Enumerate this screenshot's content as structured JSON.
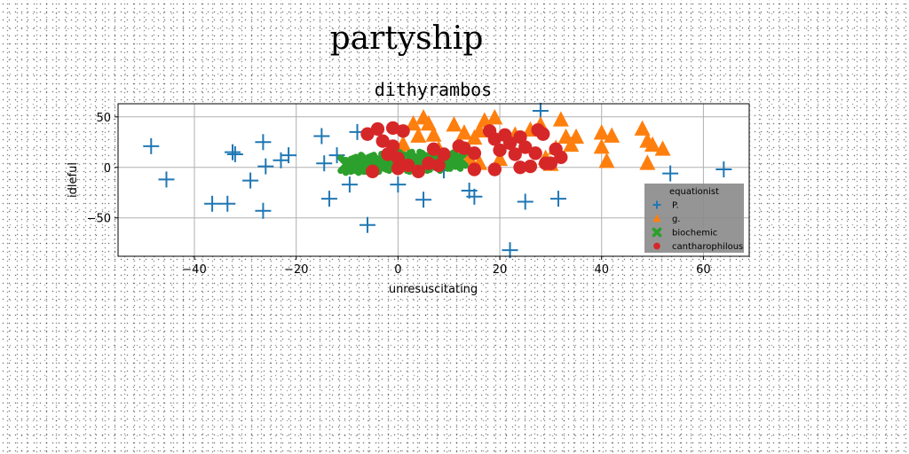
{
  "figure_title": "partyship",
  "chart_data": {
    "type": "scatter",
    "title": "dithyrambos",
    "xlabel": "unresuscitating",
    "ylabel": "idleful",
    "xlim": [
      -55,
      69
    ],
    "ylim": [
      -88,
      63
    ],
    "xticks": [
      -40,
      -20,
      0,
      20,
      40,
      60
    ],
    "yticks": [
      -50,
      0,
      50
    ],
    "xtick_labels": [
      "−40",
      "−20",
      "0",
      "20",
      "40",
      "60"
    ],
    "ytick_labels": [
      "−50",
      "0",
      "50"
    ],
    "grid": true,
    "legend": {
      "title": "equationist",
      "placement": "lower-right"
    },
    "series": [
      {
        "name": "P.",
        "marker": "plus",
        "color": "#1f77b4",
        "points": [
          [
            -48.5,
            21
          ],
          [
            -45.5,
            -12
          ],
          [
            -36.5,
            -36
          ],
          [
            -33.5,
            -36
          ],
          [
            -32.5,
            15
          ],
          [
            -32,
            13
          ],
          [
            -29,
            -13
          ],
          [
            -26.5,
            25
          ],
          [
            -26.5,
            -43
          ],
          [
            -26,
            1
          ],
          [
            -23,
            7
          ],
          [
            -21.5,
            12
          ],
          [
            -15,
            31
          ],
          [
            -14.5,
            4
          ],
          [
            -13.5,
            -31
          ],
          [
            -12,
            12
          ],
          [
            -9.5,
            -17
          ],
          [
            -8,
            35
          ],
          [
            -7,
            5
          ],
          [
            -6,
            -57
          ],
          [
            0,
            -17
          ],
          [
            5,
            -32
          ],
          [
            9,
            -3
          ],
          [
            14,
            -23
          ],
          [
            15,
            -29
          ],
          [
            22,
            -82
          ],
          [
            25,
            -34
          ],
          [
            28,
            56
          ],
          [
            31.5,
            -31
          ],
          [
            53.5,
            -6
          ],
          [
            64,
            -2
          ]
        ]
      },
      {
        "name": "g.",
        "marker": "triangle",
        "color": "#ff7f0e",
        "points": [
          [
            1,
            13
          ],
          [
            1,
            23
          ],
          [
            3,
            43
          ],
          [
            4,
            31
          ],
          [
            5,
            49
          ],
          [
            6,
            43
          ],
          [
            7,
            32
          ],
          [
            8,
            18
          ],
          [
            11,
            42
          ],
          [
            12,
            22
          ],
          [
            13,
            34
          ],
          [
            14,
            9
          ],
          [
            15,
            29
          ],
          [
            16,
            36
          ],
          [
            16,
            4
          ],
          [
            17,
            46
          ],
          [
            19,
            49
          ],
          [
            20,
            8
          ],
          [
            23,
            32
          ],
          [
            26,
            37
          ],
          [
            28,
            42
          ],
          [
            29,
            9
          ],
          [
            30,
            3
          ],
          [
            31,
            19
          ],
          [
            32,
            47
          ],
          [
            33,
            30
          ],
          [
            34,
            22
          ],
          [
            35,
            30
          ],
          [
            40,
            20
          ],
          [
            40,
            34
          ],
          [
            41,
            6
          ],
          [
            42,
            31
          ],
          [
            48,
            38
          ],
          [
            49,
            4
          ],
          [
            49,
            26
          ],
          [
            50,
            22
          ],
          [
            52,
            18
          ]
        ]
      },
      {
        "name": "biochemic",
        "marker": "x",
        "color": "#2ca02c",
        "points": [
          [
            -10,
            3
          ],
          [
            -9,
            1
          ],
          [
            -8,
            2
          ],
          [
            -7,
            4
          ],
          [
            -6,
            6
          ],
          [
            -5,
            2
          ],
          [
            -4,
            5
          ],
          [
            -3,
            3
          ],
          [
            -2,
            7
          ],
          [
            -1,
            4
          ],
          [
            0,
            6
          ],
          [
            1,
            2
          ],
          [
            1.5,
            9
          ],
          [
            2,
            5
          ],
          [
            3,
            3
          ],
          [
            3.5,
            8
          ],
          [
            4,
            6
          ],
          [
            5,
            4
          ],
          [
            5.5,
            9
          ],
          [
            6,
            6
          ],
          [
            7,
            3
          ],
          [
            8,
            8
          ],
          [
            9,
            5
          ],
          [
            10,
            7
          ],
          [
            11,
            5
          ],
          [
            12,
            8
          ]
        ]
      },
      {
        "name": "cantharophilous",
        "marker": "circle",
        "color": "#d62728",
        "points": [
          [
            -6,
            33
          ],
          [
            -4,
            38
          ],
          [
            -3,
            26
          ],
          [
            -2,
            13
          ],
          [
            -1,
            39
          ],
          [
            -1,
            21
          ],
          [
            0,
            9
          ],
          [
            1,
            36
          ],
          [
            -5,
            -4
          ],
          [
            0,
            -1
          ],
          [
            2,
            2
          ],
          [
            4,
            -4
          ],
          [
            6,
            4
          ],
          [
            7,
            18
          ],
          [
            8,
            2
          ],
          [
            9,
            13
          ],
          [
            12,
            21
          ],
          [
            13,
            19
          ],
          [
            15,
            14
          ],
          [
            15,
            -2
          ],
          [
            18,
            36
          ],
          [
            19,
            28
          ],
          [
            19,
            -2
          ],
          [
            20,
            17
          ],
          [
            21,
            32
          ],
          [
            22,
            24
          ],
          [
            23,
            13
          ],
          [
            24,
            0
          ],
          [
            24,
            30
          ],
          [
            25,
            20
          ],
          [
            26,
            1
          ],
          [
            27,
            14
          ],
          [
            27.5,
            37
          ],
          [
            28.5,
            33
          ],
          [
            29,
            4
          ],
          [
            30,
            4
          ],
          [
            31,
            18
          ],
          [
            32,
            10
          ]
        ]
      }
    ]
  }
}
